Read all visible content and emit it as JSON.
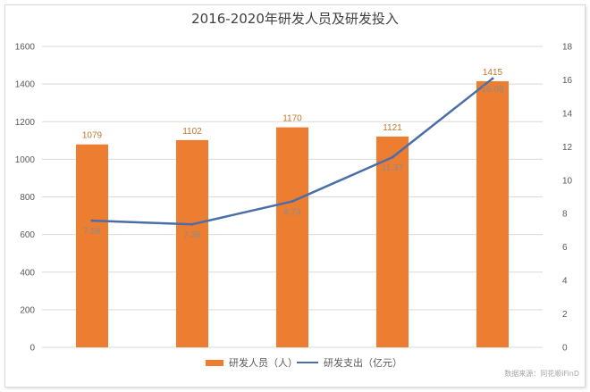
{
  "chart_data": {
    "type": "bar",
    "title": "2016-2020年研发人员及研发投入",
    "categories": [
      "",
      "",
      "",
      "",
      ""
    ],
    "series": [
      {
        "name": "研发人员（人）",
        "type": "bar",
        "axis": "left",
        "values": [
          1079,
          1102,
          1170,
          1121,
          1415
        ]
      },
      {
        "name": "研发支出（亿元）",
        "type": "line",
        "axis": "right",
        "values": [
          7.58,
          7.36,
          8.73,
          11.37,
          16.08
        ]
      }
    ],
    "y_left": {
      "ylim": [
        0,
        1600
      ],
      "ticks": [
        "0",
        "200",
        "400",
        "600",
        "800",
        "1000",
        "1200",
        "1400",
        "1600"
      ]
    },
    "y_right": {
      "ylim": [
        0,
        18
      ],
      "ticks": [
        "0",
        "2",
        "4",
        "6",
        "8",
        "10",
        "12",
        "14",
        "16",
        "18"
      ]
    },
    "grid": true,
    "legend_position": "bottom",
    "colors": {
      "bar": "#ed7d31",
      "line": "#4a6fa8",
      "bar_label": "#c0762e"
    }
  },
  "source_text": "数据来源：同花顺iFinD"
}
